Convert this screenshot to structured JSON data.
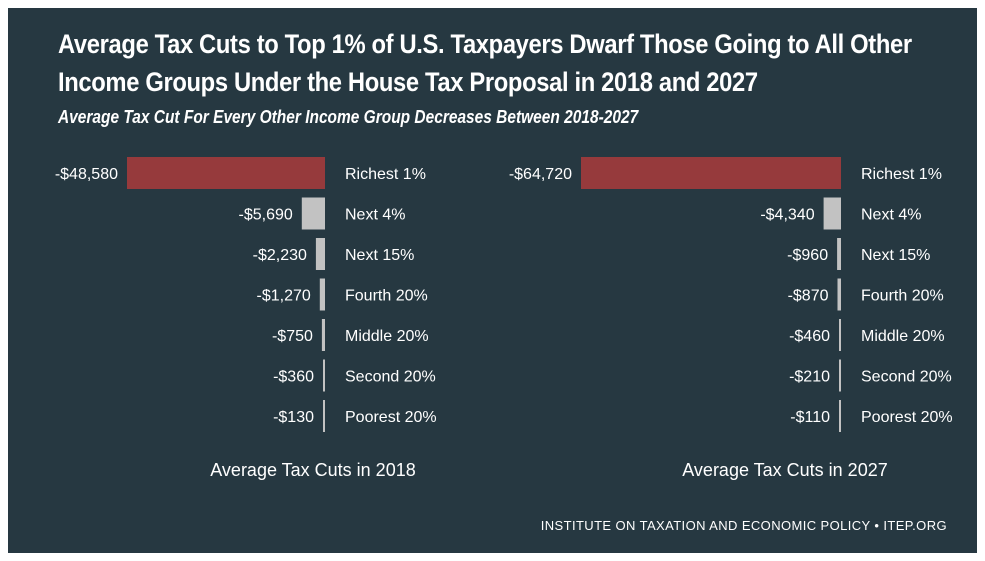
{
  "title_lines": [
    "Average Tax Cuts to Top 1% of U.S. Taxpayers Dwarf Those Going to All Other",
    "Income Groups Under the House Tax Proposal in 2018 and 2027"
  ],
  "subtitle": "Average Tax Cut For Every Other Income Group Decreases Between 2018-2027",
  "source": "INSTITUTE ON TAXATION AND ECONOMIC POLICY • ITEP.ORG",
  "colors": {
    "background": "#263841",
    "highlight": "#963a3c",
    "bar": "#c2c2c2",
    "text": "#ffffff"
  },
  "chart_data": [
    {
      "type": "bar",
      "orientation": "horizontal",
      "title": "Average Tax Cuts in 2018",
      "categories": [
        "Richest 1%",
        "Next 4%",
        "Next 15%",
        "Fourth 20%",
        "Middle 20%",
        "Second 20%",
        "Poorest 20%"
      ],
      "values": [
        -48580,
        -5690,
        -2230,
        -1270,
        -750,
        -360,
        -130
      ],
      "value_labels": [
        "-$48,580",
        "-$5,690",
        "-$2,230",
        "-$1,270",
        "-$750",
        "-$360",
        "-$130"
      ],
      "highlight_index": 0
    },
    {
      "type": "bar",
      "orientation": "horizontal",
      "title": "Average Tax Cuts in 2027",
      "categories": [
        "Richest 1%",
        "Next 4%",
        "Next 15%",
        "Fourth 20%",
        "Middle 20%",
        "Second 20%",
        "Poorest 20%"
      ],
      "values": [
        -64720,
        -4340,
        -960,
        -870,
        -460,
        -210,
        -110
      ],
      "value_labels": [
        "-$64,720",
        "-$4,340",
        "-$960",
        "-$870",
        "-$460",
        "-$210",
        "-$110"
      ],
      "highlight_index": 0
    }
  ]
}
